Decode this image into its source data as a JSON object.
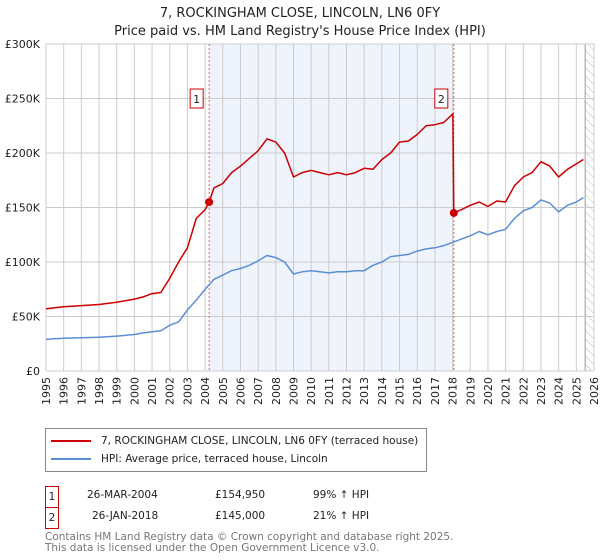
{
  "title": "7, ROCKINGHAM CLOSE, LINCOLN, LN6 0FY",
  "subtitle": "Price paid vs. HM Land Registry's House Price Index (HPI)",
  "colors": {
    "property": "#cc0000",
    "hpi": "#5b8fd4",
    "shade": "#eef3fc"
  },
  "chart_data": {
    "type": "line",
    "title": "7, ROCKINGHAM CLOSE, LINCOLN, LN6 0FY",
    "xlim": [
      1995,
      2026
    ],
    "ylim": [
      0,
      300000
    ],
    "yticks": [
      0,
      50000,
      100000,
      150000,
      200000,
      250000,
      300000
    ],
    "ytick_labels": [
      "£0",
      "£50K",
      "£100K",
      "£150K",
      "£200K",
      "£250K",
      "£300K"
    ],
    "xticks": [
      "1995",
      "1996",
      "1997",
      "1998",
      "1999",
      "2000",
      "2001",
      "2002",
      "2003",
      "2004",
      "2005",
      "2006",
      "2007",
      "2008",
      "2009",
      "2010",
      "2011",
      "2012",
      "2013",
      "2014",
      "2015",
      "2016",
      "2017",
      "2018",
      "2019",
      "2020",
      "2021",
      "2022",
      "2023",
      "2024",
      "2025",
      "2026"
    ],
    "grid": true,
    "forecast_hatch_from": 2025.5,
    "shaded_range": [
      2004.23,
      2018.07
    ],
    "series": [
      {
        "name": "7, ROCKINGHAM CLOSE, LINCOLN, LN6 0FY (terraced house)",
        "x": [
          1995,
          1995.5,
          1996,
          1997,
          1998,
          1999,
          2000,
          2000.5,
          2001,
          2001.5,
          2002,
          2002.5,
          2003,
          2003.5,
          2004,
          2004.23,
          2004.5,
          2005,
          2005.5,
          2006,
          2006.5,
          2007,
          2007.5,
          2008,
          2008.5,
          2009,
          2009.5,
          2010,
          2010.5,
          2011,
          2011.5,
          2012,
          2012.5,
          2013,
          2013.5,
          2014,
          2014.5,
          2015,
          2015.5,
          2016,
          2016.5,
          2017,
          2017.5,
          2018.02,
          2018.07,
          2018.5,
          2019,
          2019.5,
          2020,
          2020.5,
          2021,
          2021.5,
          2022,
          2022.5,
          2023,
          2023.5,
          2024,
          2024.5,
          2025,
          2025.4
        ],
        "y": [
          57000,
          58000,
          59000,
          60000,
          61000,
          63000,
          66000,
          68000,
          71000,
          72000,
          85000,
          100000,
          113000,
          140000,
          148000,
          154950,
          168000,
          172000,
          182000,
          188000,
          195000,
          202000,
          213000,
          210000,
          200000,
          178000,
          182000,
          184000,
          182000,
          180000,
          182000,
          180000,
          182000,
          186000,
          185000,
          194000,
          200000,
          210000,
          211000,
          217000,
          225000,
          226000,
          228000,
          236000,
          145000,
          148000,
          152000,
          155000,
          151000,
          156000,
          155000,
          170000,
          178000,
          182000,
          192000,
          188000,
          178000,
          185000,
          190000,
          194000
        ]
      },
      {
        "name": "HPI: Average price, terraced house, Lincoln",
        "x": [
          1995,
          1995.5,
          1996,
          1997,
          1998,
          1999,
          2000,
          2000.5,
          2001,
          2001.5,
          2002,
          2002.5,
          2003,
          2003.5,
          2004,
          2004.5,
          2005,
          2005.5,
          2006,
          2006.5,
          2007,
          2007.5,
          2008,
          2008.5,
          2009,
          2009.5,
          2010,
          2010.5,
          2011,
          2011.5,
          2012,
          2012.5,
          2013,
          2013.5,
          2014,
          2014.5,
          2015,
          2015.5,
          2016,
          2016.5,
          2017,
          2017.5,
          2018,
          2018.5,
          2019,
          2019.5,
          2020,
          2020.5,
          2021,
          2021.5,
          2022,
          2022.5,
          2023,
          2023.5,
          2024,
          2024.5,
          2025,
          2025.4
        ],
        "y": [
          29000,
          29500,
          30000,
          30500,
          31000,
          32000,
          33500,
          35000,
          36000,
          37000,
          42000,
          45000,
          56000,
          65000,
          75000,
          84000,
          88000,
          92000,
          94000,
          97000,
          101000,
          106000,
          104000,
          100000,
          89000,
          91000,
          92000,
          91000,
          90000,
          91000,
          91000,
          92000,
          92000,
          97000,
          100000,
          105000,
          106000,
          107000,
          110000,
          112000,
          113000,
          115000,
          118000,
          121000,
          124000,
          128000,
          125000,
          128000,
          130000,
          140000,
          147000,
          150000,
          157000,
          154000,
          146000,
          152000,
          155000,
          159000
        ]
      }
    ],
    "annotations": [
      {
        "label": "1",
        "x": 2004.23,
        "y": 154950
      },
      {
        "label": "2",
        "x": 2018.07,
        "y": 145000
      }
    ]
  },
  "legend": [
    "7, ROCKINGHAM CLOSE, LINCOLN, LN6 0FY (terraced house)",
    "HPI: Average price, terraced house, Lincoln"
  ],
  "transactions": [
    {
      "num": "1",
      "date": "26-MAR-2004",
      "price": "£154,950",
      "hpi": "99% ↑ HPI"
    },
    {
      "num": "2",
      "date": "26-JAN-2018",
      "price": "£145,000",
      "hpi": "21% ↑ HPI"
    }
  ],
  "footer": [
    "Contains HM Land Registry data © Crown copyright and database right 2025.",
    "This data is licensed under the Open Government Licence v3.0."
  ]
}
